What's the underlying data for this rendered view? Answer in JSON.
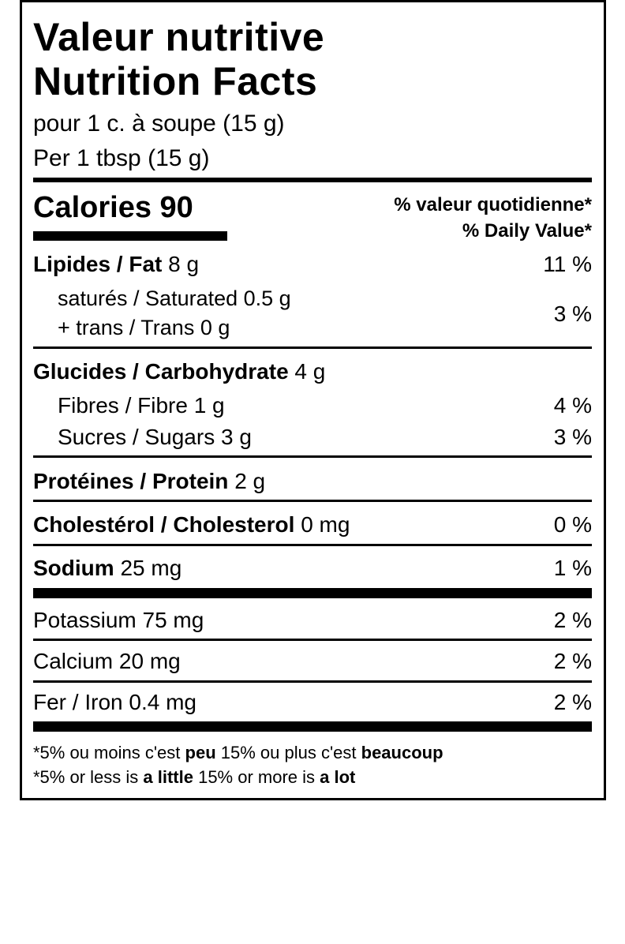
{
  "title_fr": "Valeur nutritive",
  "title_en": "Nutrition Facts",
  "serving_fr": "pour 1 c. à soupe (15 g)",
  "serving_en": "Per 1 tbsp (15 g)",
  "calories": {
    "label": "Calories",
    "value": "90"
  },
  "dv_header_fr": "% valeur quotidienne*",
  "dv_header_en": "% Daily Value*",
  "rows": {
    "fat": {
      "name": "Lipides / Fat",
      "amount": "8 g",
      "dv": "11 %"
    },
    "saturated": {
      "name": "saturés / Saturated 0.5 g"
    },
    "trans": {
      "name": "+ trans / Trans 0 g"
    },
    "sat_trans_dv": "3 %",
    "carb": {
      "name": "Glucides / Carbohydrate",
      "amount": "4 g"
    },
    "fibre": {
      "name": "Fibres / Fibre 1 g",
      "dv": "4 %"
    },
    "sugars": {
      "name": "Sucres / Sugars 3 g",
      "dv": "3 %"
    },
    "protein": {
      "name": "Protéines / Protein",
      "amount": "2 g"
    },
    "cholesterol": {
      "name": "Cholestérol / Cholesterol",
      "amount": "0 mg",
      "dv": "0 %"
    },
    "sodium": {
      "name": "Sodium",
      "amount": "25 mg",
      "dv": "1 %"
    },
    "potassium": {
      "name": "Potassium 75 mg",
      "dv": "2 %"
    },
    "calcium": {
      "name": "Calcium 20 mg",
      "dv": "2 %"
    },
    "iron": {
      "name": "Fer / Iron 0.4 mg",
      "dv": "2 %"
    }
  },
  "footnote_fr": {
    "a": "*5% ou moins c'est ",
    "b": "peu",
    "c": " 15% ou plus c'est ",
    "d": "beaucoup"
  },
  "footnote_en": {
    "a": "*5% or less is ",
    "b": "a little",
    "c": " 15% or more is ",
    "d": "a lot"
  }
}
